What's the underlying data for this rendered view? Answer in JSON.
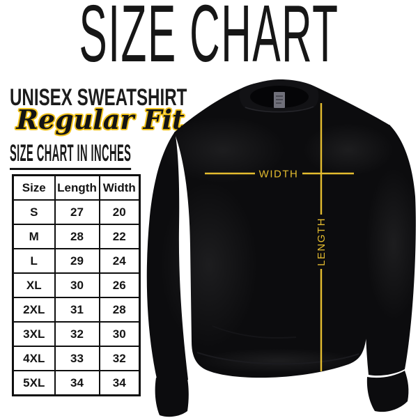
{
  "title": "SIZE CHART",
  "product": {
    "name": "UNISEX SWEATSHIRT",
    "fit": "Regular Fit"
  },
  "table_heading": "SIZE CHART IN INCHES",
  "size_table": {
    "columns": [
      "Size",
      "Length",
      "Width"
    ],
    "rows": [
      [
        "S",
        "27",
        "20"
      ],
      [
        "M",
        "28",
        "22"
      ],
      [
        "L",
        "29",
        "24"
      ],
      [
        "XL",
        "30",
        "26"
      ],
      [
        "2XL",
        "31",
        "28"
      ],
      [
        "3XL",
        "32",
        "30"
      ],
      [
        "4XL",
        "33",
        "32"
      ],
      [
        "5XL",
        "34",
        "34"
      ]
    ]
  },
  "diagram": {
    "garment": "black crewneck sweatshirt",
    "width_label": "WIDTH",
    "length_label": "LENGTH",
    "measure_line_color": "#E4BC2F",
    "garment_color": "#0C0C0E",
    "collar_color": "#121215",
    "neck_tag_color": "#70707A"
  },
  "accent": {
    "script_outline_yellow": "#F2C41C",
    "ink": "#141414"
  }
}
